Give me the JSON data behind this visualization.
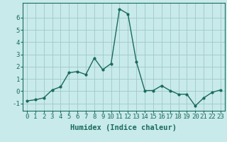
{
  "x": [
    0,
    1,
    2,
    3,
    4,
    5,
    6,
    7,
    8,
    9,
    10,
    11,
    12,
    13,
    14,
    15,
    16,
    17,
    18,
    19,
    20,
    21,
    22,
    23
  ],
  "y": [
    -0.8,
    -0.7,
    -0.55,
    0.1,
    0.35,
    1.5,
    1.6,
    1.35,
    2.7,
    1.75,
    2.25,
    6.7,
    6.3,
    2.4,
    0.05,
    0.05,
    0.45,
    0.05,
    -0.25,
    -0.25,
    -1.2,
    -0.55,
    -0.1,
    0.1
  ],
  "line_color": "#1a6b5a",
  "marker": "o",
  "marker_size": 2.0,
  "bg_color": "#c8eaea",
  "grid_color": "#a0c8c8",
  "xlabel": "Humidex (Indice chaleur)",
  "xlabel_fontsize": 7.5,
  "tick_fontsize": 6.5,
  "ylim": [
    -1.6,
    7.2
  ],
  "xlim": [
    -0.5,
    23.5
  ],
  "yticks": [
    -1,
    0,
    1,
    2,
    3,
    4,
    5,
    6
  ],
  "xticks": [
    0,
    1,
    2,
    3,
    4,
    5,
    6,
    7,
    8,
    9,
    10,
    11,
    12,
    13,
    14,
    15,
    16,
    17,
    18,
    19,
    20,
    21,
    22,
    23
  ],
  "linewidth": 1.0
}
